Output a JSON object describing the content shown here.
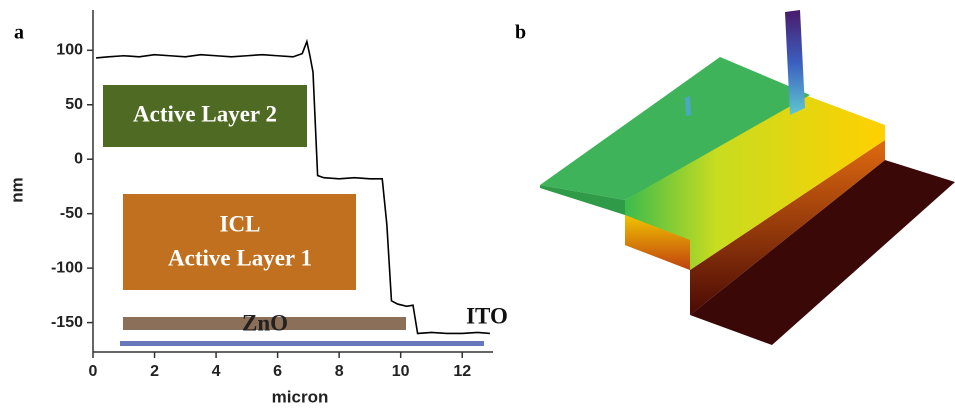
{
  "chart_data": {
    "type": "line",
    "panel_labels": [
      "a",
      "b"
    ],
    "xlabel": "micron",
    "ylabel": "nm",
    "annotations": [
      "Active Layer 2",
      "ICL",
      "Active Layer 1",
      "ZnO",
      "ITO"
    ],
    "x": [
      0.1,
      0.5,
      1,
      1.5,
      2,
      2.5,
      3,
      3.5,
      4,
      4.5,
      5,
      5.5,
      6,
      6.5,
      6.8,
      6.95,
      7.05,
      7.15,
      7.3,
      7.5,
      8,
      8.5,
      9,
      9.4,
      9.55,
      9.7,
      9.9,
      10.2,
      10.4,
      10.55,
      11,
      11.5,
      12,
      12.5,
      12.9
    ],
    "series": [
      {
        "color": "#000000",
        "values": [
          93,
          94,
          95,
          94,
          96,
          95,
          94,
          96,
          95,
          94,
          95,
          96,
          95,
          94,
          97,
          108,
          95,
          80,
          -15,
          -17,
          -18,
          -17,
          -18,
          -18,
          -60,
          -130,
          -133,
          -135,
          -134,
          -160,
          -159,
          -160,
          -160,
          -159,
          -160
        ]
      }
    ],
    "xlim": [
      0,
      13
    ],
    "xticks": [
      0,
      2,
      4,
      6,
      8,
      10,
      12
    ],
    "ylim": [
      -177,
      137
    ],
    "yticks": [
      -150,
      -100,
      -50,
      0,
      50,
      100
    ]
  }
}
